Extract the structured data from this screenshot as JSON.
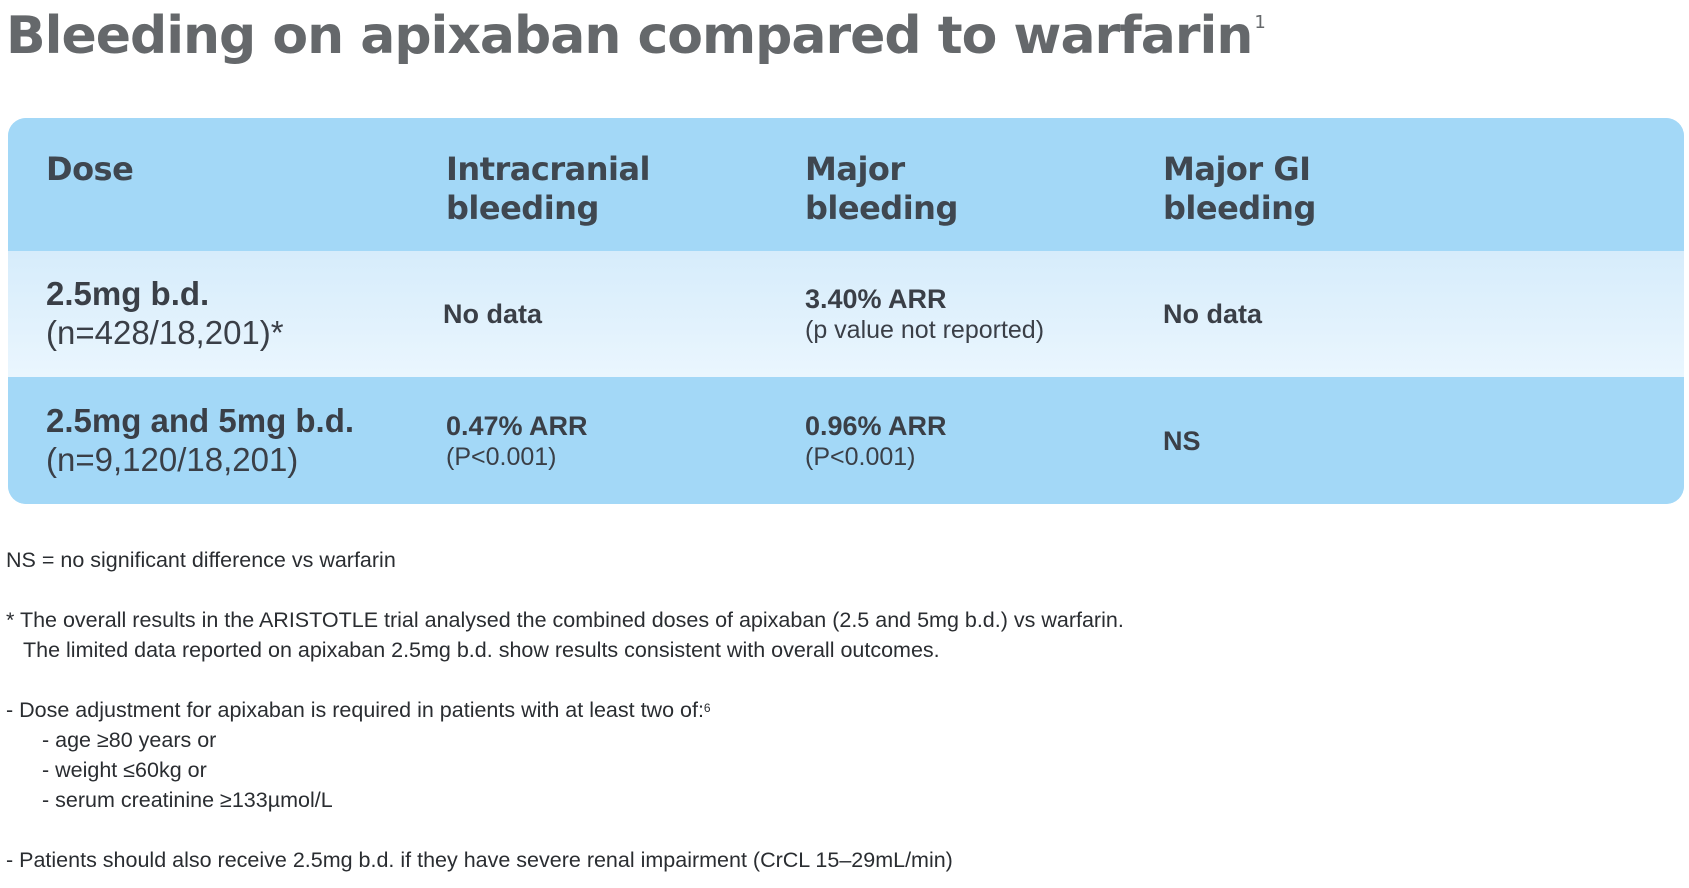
{
  "title": {
    "text": "Bleeding on apixaban compared to warfarin",
    "superscript": "1"
  },
  "table": {
    "headers": {
      "dose": "Dose",
      "intracranial": "Intracranial bleeding",
      "major": "Major bleeding",
      "major_gi": "Major GI bleeding"
    },
    "rows": [
      {
        "dose_main": "2.5mg b.d.",
        "dose_sub": "(n=428/18,201)*",
        "intracranial_main": "No data",
        "intracranial_sub": "",
        "major_main": "3.40% ARR",
        "major_sub": "(p value not reported)",
        "major_gi_main": "No data",
        "major_gi_sub": ""
      },
      {
        "dose_main": "2.5mg and 5mg b.d.",
        "dose_sub": "(n=9,120/18,201)",
        "intracranial_main": "0.47% ARR",
        "intracranial_sub": "(P<0.001)",
        "major_main": "0.96% ARR",
        "major_sub": "(P<0.001)",
        "major_gi_main": "NS",
        "major_gi_sub": ""
      }
    ]
  },
  "notes": {
    "ns_definition": "NS = no significant difference vs warfarin",
    "asterisk_line1": "*  The overall results in the ARISTOTLE trial analysed the combined doses of apixaban (2.5 and 5mg b.d.) vs warfarin.",
    "asterisk_line2": "The limited data reported on apixaban 2.5mg b.d. show results consistent with overall outcomes.",
    "dose_adjustment": "-  Dose adjustment for apixaban is required in patients with at least two of:",
    "dose_adjustment_ref": "6",
    "criteria": [
      "-  age ≥80 years or",
      "-  weight ≤60kg or",
      "-  serum creatinine ≥133µmol/L"
    ],
    "renal": "-  Patients should also receive 2.5mg b.d. if they have severe renal impairment (CrCL 15–29mL/min)"
  }
}
